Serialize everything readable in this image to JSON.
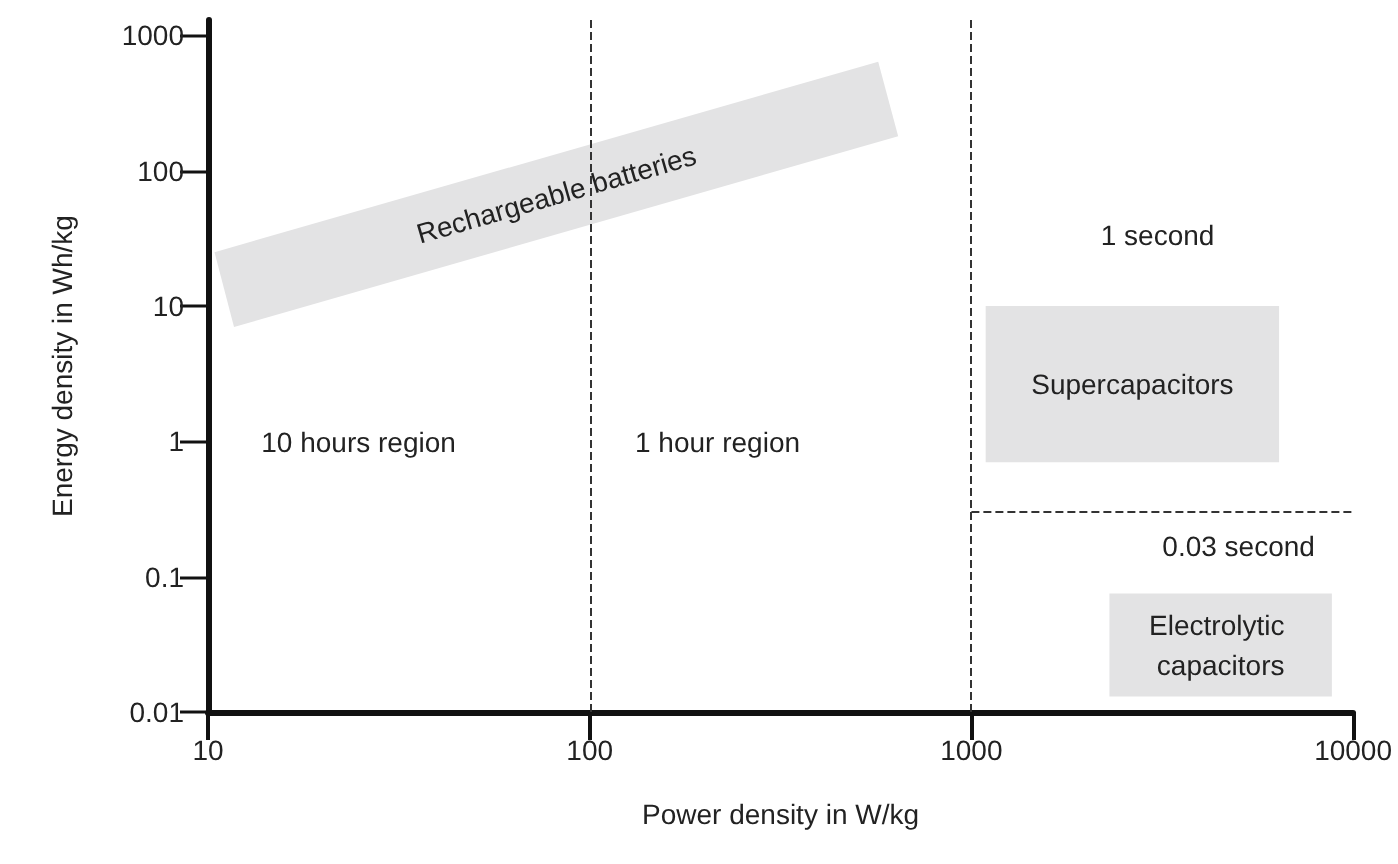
{
  "chart_data": {
    "type": "area",
    "xlabel": "Power density in W/kg",
    "ylabel": "Energy density in Wh/kg",
    "log": "xy",
    "xlim": [
      10,
      10000
    ],
    "ylim": [
      0.01,
      1300
    ],
    "xticks": [
      10,
      100,
      1000,
      10000
    ],
    "yticks": [
      0.01,
      0.1,
      1,
      10,
      100,
      1000
    ],
    "grid": false,
    "line_style": "dashed",
    "series": [
      {
        "name": "Rechargeable batteries",
        "color": "#e3e3e4",
        "x": [
          10.4,
          570,
          643,
          11.7
        ],
        "values": [
          25,
          640,
          180,
          7
        ]
      },
      {
        "name": "Supercapacitors",
        "color": "#e3e3e4",
        "x": [
          1090,
          6400,
          6400,
          1090
        ],
        "values": [
          10,
          10,
          0.7,
          0.7
        ]
      },
      {
        "name": "Electrolytic capacitors",
        "color": "#e3e3e4",
        "x": [
          2300,
          8800,
          8800,
          2300
        ],
        "values": [
          0.075,
          0.075,
          0.013,
          0.013
        ]
      },
      {
        "type": "line",
        "color": "#333333",
        "x": [
          1000,
          10000
        ],
        "values": [
          0.3,
          0.3
        ]
      }
    ],
    "ref_lines": [
      {
        "axis": "x",
        "value": 100,
        "color": "#333333"
      },
      {
        "axis": "x",
        "value": 1000,
        "color": "#333333"
      }
    ],
    "annotations": [
      "10 hours region",
      "1 hour region",
      "1 second",
      "0.03 second"
    ]
  }
}
